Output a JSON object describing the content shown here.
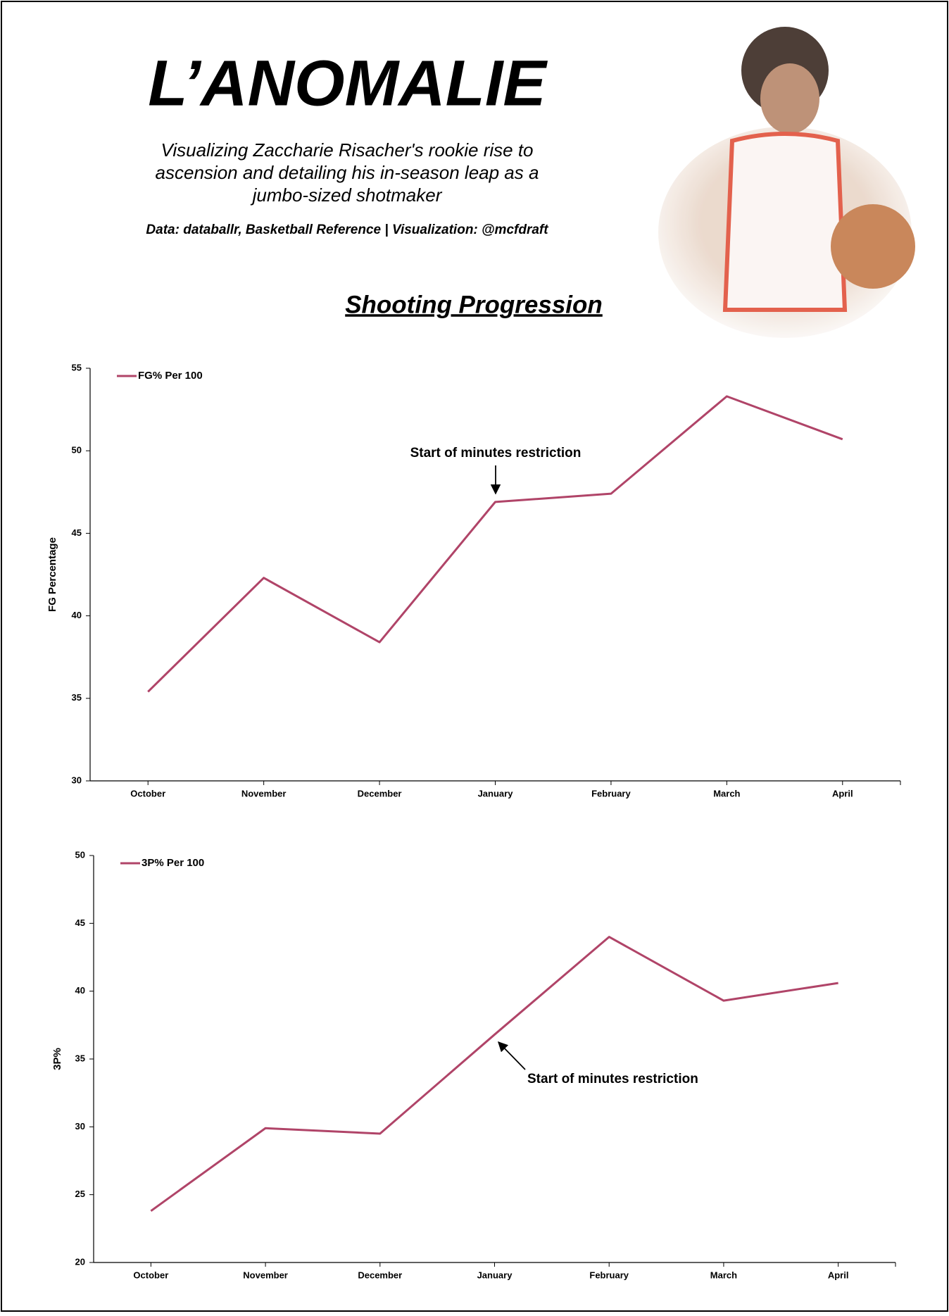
{
  "header": {
    "title": "L’ANOMALIE",
    "subtitle_lines": [
      "Visualizing Zaccharie Risacher's rookie rise to",
      "ascension and detailing his in-season leap as a",
      "jumbo-sized shotmaker"
    ],
    "credits": "Data: databallr, Basketball Reference | Visualization: @mcfdraft",
    "section_title": "Shooting Progression"
  },
  "chart_data": [
    {
      "type": "line",
      "y_label": "FG Percentage",
      "categories": [
        "October",
        "November",
        "December",
        "January",
        "February",
        "March",
        "April"
      ],
      "series": [
        {
          "name": "FG% Per 100",
          "color": "#b04468",
          "values": [
            35.4,
            42.3,
            38.4,
            46.9,
            47.4,
            53.3,
            50.7
          ]
        }
      ],
      "ylim": [
        30,
        55
      ],
      "yticks": [
        30,
        35,
        40,
        45,
        50,
        55
      ],
      "legend": "upper-left",
      "annotation": "Start of minutes restriction"
    },
    {
      "type": "line",
      "y_label": "3P%",
      "categories": [
        "October",
        "November",
        "December",
        "January",
        "February",
        "March",
        "April"
      ],
      "series": [
        {
          "name": "3P% Per 100",
          "color": "#b04468",
          "values": [
            23.8,
            29.9,
            29.5,
            36.8,
            44.0,
            39.3,
            40.6
          ]
        }
      ],
      "ylim": [
        20,
        50
      ],
      "yticks": [
        20,
        25,
        30,
        35,
        40,
        45,
        50
      ],
      "legend": "upper-left",
      "annotation": "Start of minutes restriction"
    }
  ]
}
